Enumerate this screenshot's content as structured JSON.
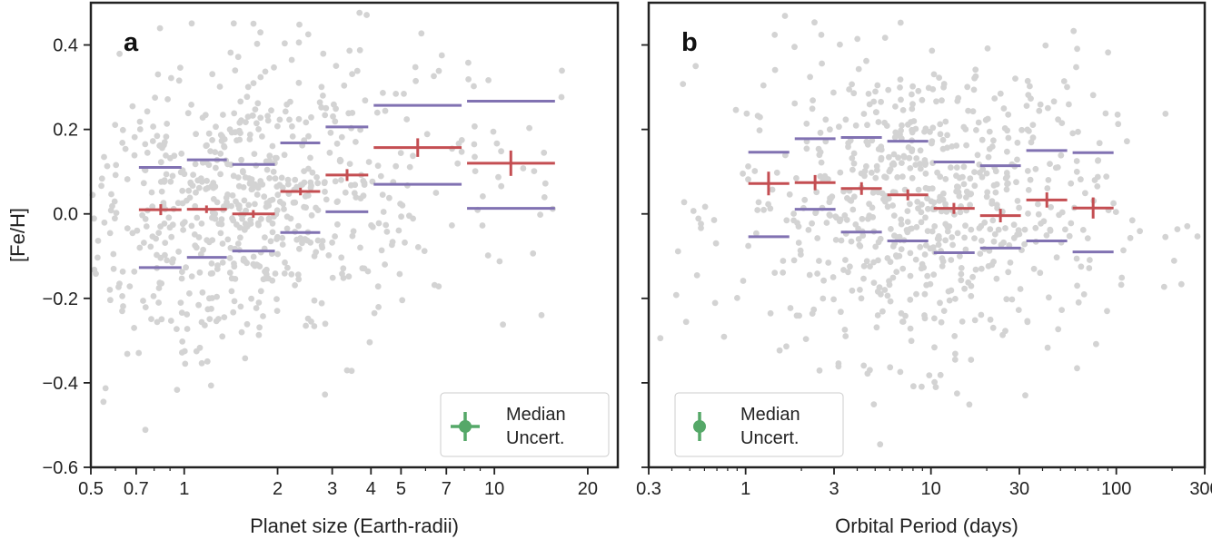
{
  "chart_data": [
    {
      "type": "scatter",
      "panel_label": "a",
      "xlabel": "Planet size (Earth-radii)",
      "ylabel": "[Fe/H]",
      "xscale": "log",
      "xlim": [
        0.5,
        25
      ],
      "ylim": [
        -0.6,
        0.5
      ],
      "xticks": [
        0.5,
        0.7,
        1,
        2,
        3,
        4,
        5,
        7,
        10,
        20
      ],
      "xtick_labels": [
        "0.5",
        "0.7",
        "1",
        "2",
        "3",
        "4",
        "5",
        "7",
        "10",
        "20"
      ],
      "yticks": [
        -0.6,
        -0.4,
        -0.2,
        0.0,
        0.2,
        0.4
      ],
      "ytick_labels": [
        "−0.6",
        "−0.4",
        "−0.2",
        "0.0",
        "0.2",
        "0.4"
      ],
      "grid": false,
      "legend": {
        "location": "lower right",
        "label_line1": "Median",
        "label_line2": "Uncert.",
        "marker_color": "#55a868",
        "x_err_exists": true
      },
      "points_color": "#d3d3d3",
      "bin_edges": [
        0.7,
        1.0,
        1.4,
        2.0,
        2.8,
        4.0,
        8.0,
        16.0
      ],
      "median_color": "#c44e52",
      "median": [
        {
          "x": 0.84,
          "y": 0.01,
          "yerr": 0.013
        },
        {
          "x": 1.18,
          "y": 0.011,
          "yerr": 0.009
        },
        {
          "x": 1.67,
          "y": 0.0,
          "yerr": 0.009
        },
        {
          "x": 2.37,
          "y": 0.053,
          "yerr": 0.009
        },
        {
          "x": 3.35,
          "y": 0.092,
          "yerr": 0.014
        },
        {
          "x": 5.66,
          "y": 0.157,
          "yerr": 0.022
        },
        {
          "x": 11.3,
          "y": 0.12,
          "yerr": 0.03
        }
      ],
      "percentile_color": "#8172b2",
      "upper": [
        0.11,
        0.128,
        0.117,
        0.168,
        0.206,
        0.257,
        0.267
      ],
      "lower": [
        -0.127,
        -0.103,
        -0.088,
        -0.044,
        0.005,
        0.07,
        0.013
      ]
    },
    {
      "type": "scatter",
      "panel_label": "b",
      "xlabel": "Orbital Period (days)",
      "xscale": "log",
      "xlim": [
        0.3,
        300
      ],
      "ylim": [
        -0.6,
        0.5
      ],
      "xticks": [
        0.3,
        1,
        3,
        10,
        30,
        100,
        300
      ],
      "xtick_labels": [
        "0.3",
        "1",
        "3",
        "10",
        "30",
        "100",
        "300"
      ],
      "grid": false,
      "legend": {
        "location": "lower left",
        "label_line1": "Median",
        "label_line2": "Uncert.",
        "marker_color": "#55a868",
        "x_err_exists": false
      },
      "points_color": "#d3d3d3",
      "bin_edges": [
        1.0,
        1.78,
        3.16,
        5.62,
        10.0,
        17.8,
        31.6,
        56.2,
        100.0
      ],
      "median_color": "#c44e52",
      "median": [
        {
          "x": 1.33,
          "y": 0.072,
          "yerr": 0.028
        },
        {
          "x": 2.37,
          "y": 0.074,
          "yerr": 0.018
        },
        {
          "x": 4.22,
          "y": 0.06,
          "yerr": 0.015
        },
        {
          "x": 7.5,
          "y": 0.045,
          "yerr": 0.013
        },
        {
          "x": 13.3,
          "y": 0.013,
          "yerr": 0.013
        },
        {
          "x": 23.7,
          "y": -0.004,
          "yerr": 0.016
        },
        {
          "x": 42.2,
          "y": 0.033,
          "yerr": 0.018
        },
        {
          "x": 75.0,
          "y": 0.014,
          "yerr": 0.025
        }
      ],
      "percentile_color": "#8172b2",
      "upper": [
        0.146,
        0.178,
        0.181,
        0.172,
        0.123,
        0.114,
        0.15,
        0.145
      ],
      "lower": [
        -0.054,
        0.011,
        -0.043,
        -0.064,
        -0.092,
        -0.081,
        -0.064,
        -0.09
      ]
    }
  ]
}
